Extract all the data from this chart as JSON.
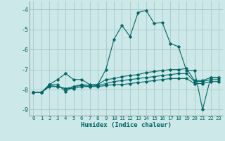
{
  "xlabel": "Humidex (Indice chaleur)",
  "bg_color": "#cce8e8",
  "grid_color": "#aac8c8",
  "line_color": "#006666",
  "xlim": [
    -0.5,
    23.5
  ],
  "ylim": [
    -9.3,
    -3.6
  ],
  "yticks": [
    -9,
    -8,
    -7,
    -6,
    -5,
    -4
  ],
  "xticks": [
    0,
    1,
    2,
    3,
    4,
    5,
    6,
    7,
    8,
    9,
    10,
    11,
    12,
    13,
    14,
    15,
    16,
    17,
    18,
    19,
    20,
    21,
    22,
    23
  ],
  "series1_x": [
    0,
    1,
    2,
    3,
    4,
    5,
    6,
    7,
    8,
    9,
    10,
    11,
    12,
    13,
    14,
    15,
    16,
    17,
    18,
    19,
    20,
    21,
    22,
    23
  ],
  "series1_y": [
    -8.15,
    -8.15,
    -7.75,
    -7.5,
    -7.2,
    -7.5,
    -7.5,
    -7.75,
    -7.75,
    -7.0,
    -5.5,
    -4.8,
    -5.35,
    -4.15,
    -4.05,
    -4.7,
    -4.65,
    -5.7,
    -5.85,
    -7.05,
    -7.05,
    -9.0,
    -7.4,
    -7.4
  ],
  "series2_x": [
    0,
    1,
    2,
    3,
    4,
    5,
    6,
    7,
    8,
    9,
    10,
    11,
    12,
    13,
    14,
    15,
    16,
    17,
    18,
    19,
    20,
    21,
    22,
    23
  ],
  "series2_y": [
    -8.15,
    -8.15,
    -7.75,
    -7.75,
    -8.1,
    -7.85,
    -7.75,
    -7.8,
    -7.75,
    -7.5,
    -7.45,
    -7.35,
    -7.3,
    -7.25,
    -7.15,
    -7.1,
    -7.05,
    -7.0,
    -7.0,
    -6.95,
    -7.55,
    -7.55,
    -7.4,
    -7.4
  ],
  "series3_x": [
    0,
    1,
    2,
    3,
    4,
    5,
    6,
    7,
    8,
    9,
    10,
    11,
    12,
    13,
    14,
    15,
    16,
    17,
    18,
    19,
    20,
    21,
    22,
    23
  ],
  "series3_y": [
    -8.15,
    -8.15,
    -7.8,
    -7.85,
    -7.95,
    -7.85,
    -7.8,
    -7.85,
    -7.8,
    -7.7,
    -7.6,
    -7.55,
    -7.5,
    -7.45,
    -7.4,
    -7.35,
    -7.3,
    -7.25,
    -7.2,
    -7.2,
    -7.6,
    -7.6,
    -7.5,
    -7.5
  ],
  "series4_x": [
    0,
    1,
    2,
    3,
    4,
    5,
    6,
    7,
    8,
    9,
    10,
    11,
    12,
    13,
    14,
    15,
    16,
    17,
    18,
    19,
    20,
    21,
    22,
    23
  ],
  "series4_y": [
    -8.15,
    -8.15,
    -7.85,
    -7.85,
    -7.95,
    -7.95,
    -7.85,
    -7.85,
    -7.85,
    -7.8,
    -7.75,
    -7.75,
    -7.7,
    -7.65,
    -7.6,
    -7.55,
    -7.5,
    -7.45,
    -7.45,
    -7.45,
    -7.7,
    -7.7,
    -7.6,
    -7.6
  ]
}
